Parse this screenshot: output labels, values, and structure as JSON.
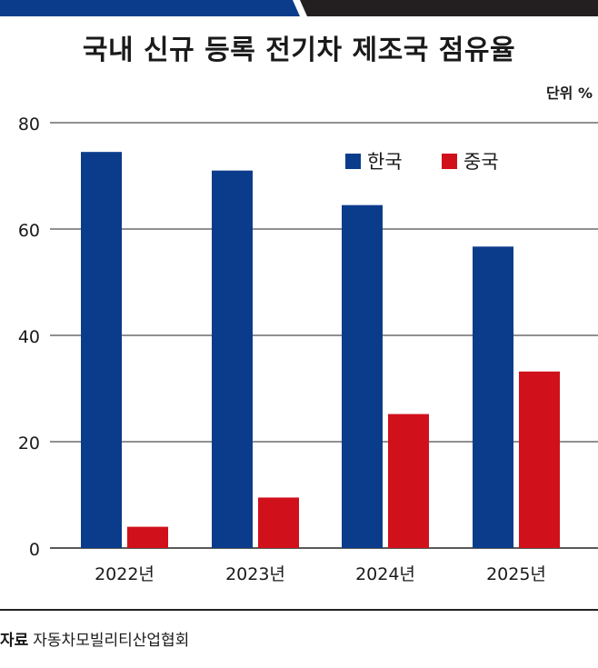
{
  "chart_data": {
    "type": "bar",
    "title": "국내 신규 등록 전기차 제조국 점유율",
    "unit": "단위 %",
    "categories": [
      "2022년",
      "2023년",
      "2024년",
      "2025년"
    ],
    "series": [
      {
        "name": "한국",
        "color": "#0b3c8c",
        "values": [
          74.5,
          71.0,
          64.5,
          56.7
        ]
      },
      {
        "name": "중국",
        "color": "#d0111b",
        "values": [
          4.0,
          9.5,
          25.2,
          33.2
        ]
      }
    ],
    "ylim": [
      0,
      80
    ],
    "yticks": [
      0,
      20,
      40,
      60,
      80
    ],
    "grid": true,
    "legend": "top-right"
  },
  "source": {
    "label": "자료",
    "text": "자동차모빌리티산업협회"
  },
  "colors": {
    "top_bar_left": "#0b3c8c",
    "top_bar_right": "#231f20",
    "gridline": "#222222"
  }
}
